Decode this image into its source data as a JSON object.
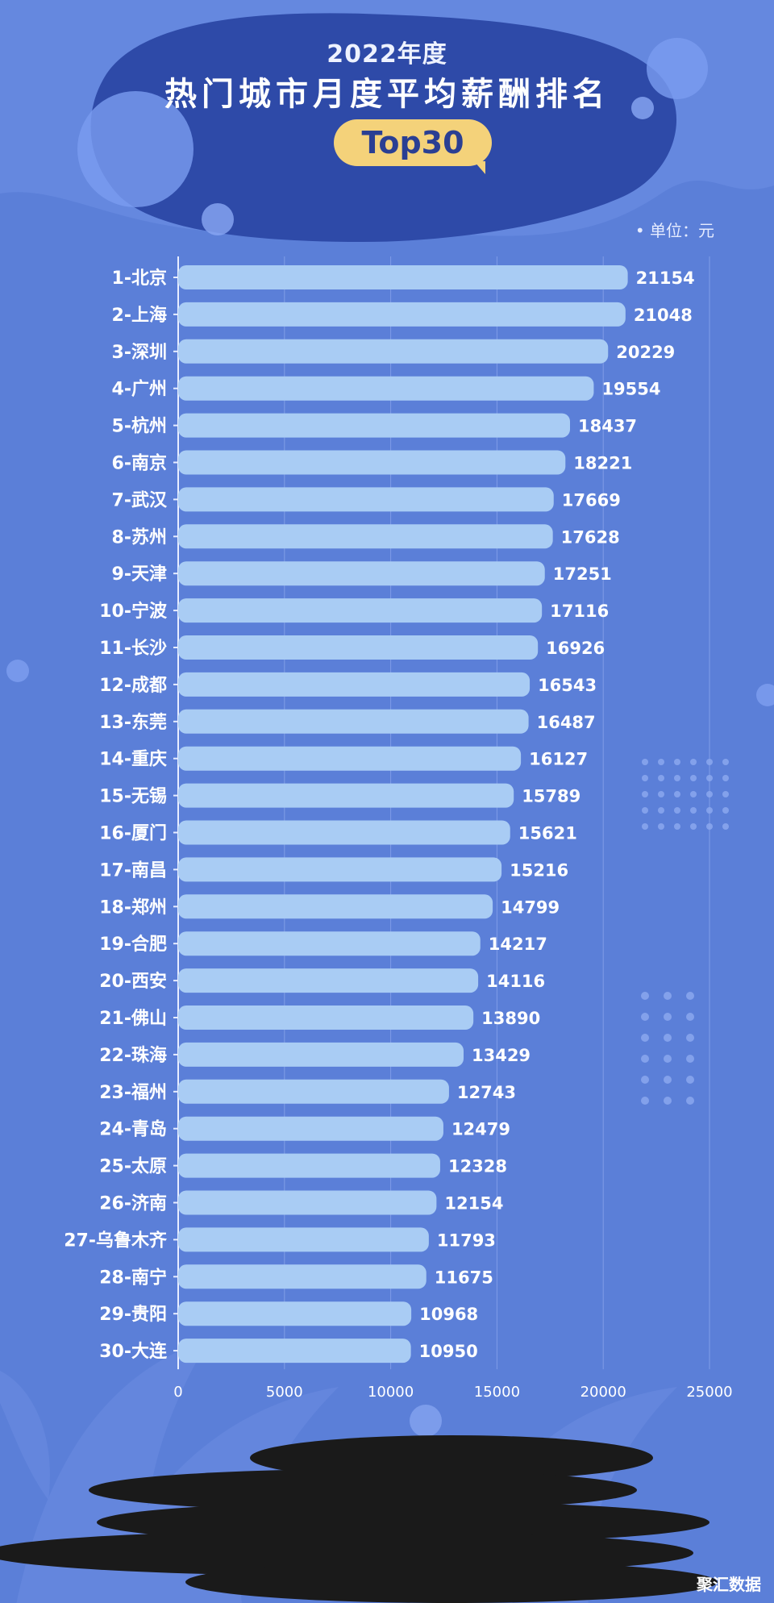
{
  "header": {
    "year": "2022年度",
    "title": "热门城市月度平均薪酬排名",
    "badge": "Top30",
    "unit": "单位：元"
  },
  "watermark": "聚汇数据",
  "colors": {
    "background": "#5b7fd8",
    "bar": "#a9ccf4",
    "header_blob": "#2e4aa8",
    "badge": "#f4d27a"
  },
  "chart_data": {
    "type": "bar",
    "orientation": "horizontal",
    "categories": [
      "1-北京",
      "2-上海",
      "3-深圳",
      "4-广州",
      "5-杭州",
      "6-南京",
      "7-武汉",
      "8-苏州",
      "9-天津",
      "10-宁波",
      "11-长沙",
      "12-成都",
      "13-东莞",
      "14-重庆",
      "15-无锡",
      "16-厦门",
      "17-南昌",
      "18-郑州",
      "19-合肥",
      "20-西安",
      "21-佛山",
      "22-珠海",
      "23-福州",
      "24-青岛",
      "25-太原",
      "26-济南",
      "27-乌鲁木齐",
      "28-南宁",
      "29-贵阳",
      "30-大连"
    ],
    "values": [
      21154,
      21048,
      20229,
      19554,
      18437,
      18221,
      17669,
      17628,
      17251,
      17116,
      16926,
      16543,
      16487,
      16127,
      15789,
      15621,
      15216,
      14799,
      14217,
      14116,
      13890,
      13429,
      12743,
      12479,
      12328,
      12154,
      11793,
      11675,
      10968,
      10950
    ],
    "xlim": [
      0,
      25000
    ],
    "xticks": [
      "0",
      "5000",
      "10000",
      "15000",
      "20000",
      "25000"
    ],
    "grid": true
  }
}
